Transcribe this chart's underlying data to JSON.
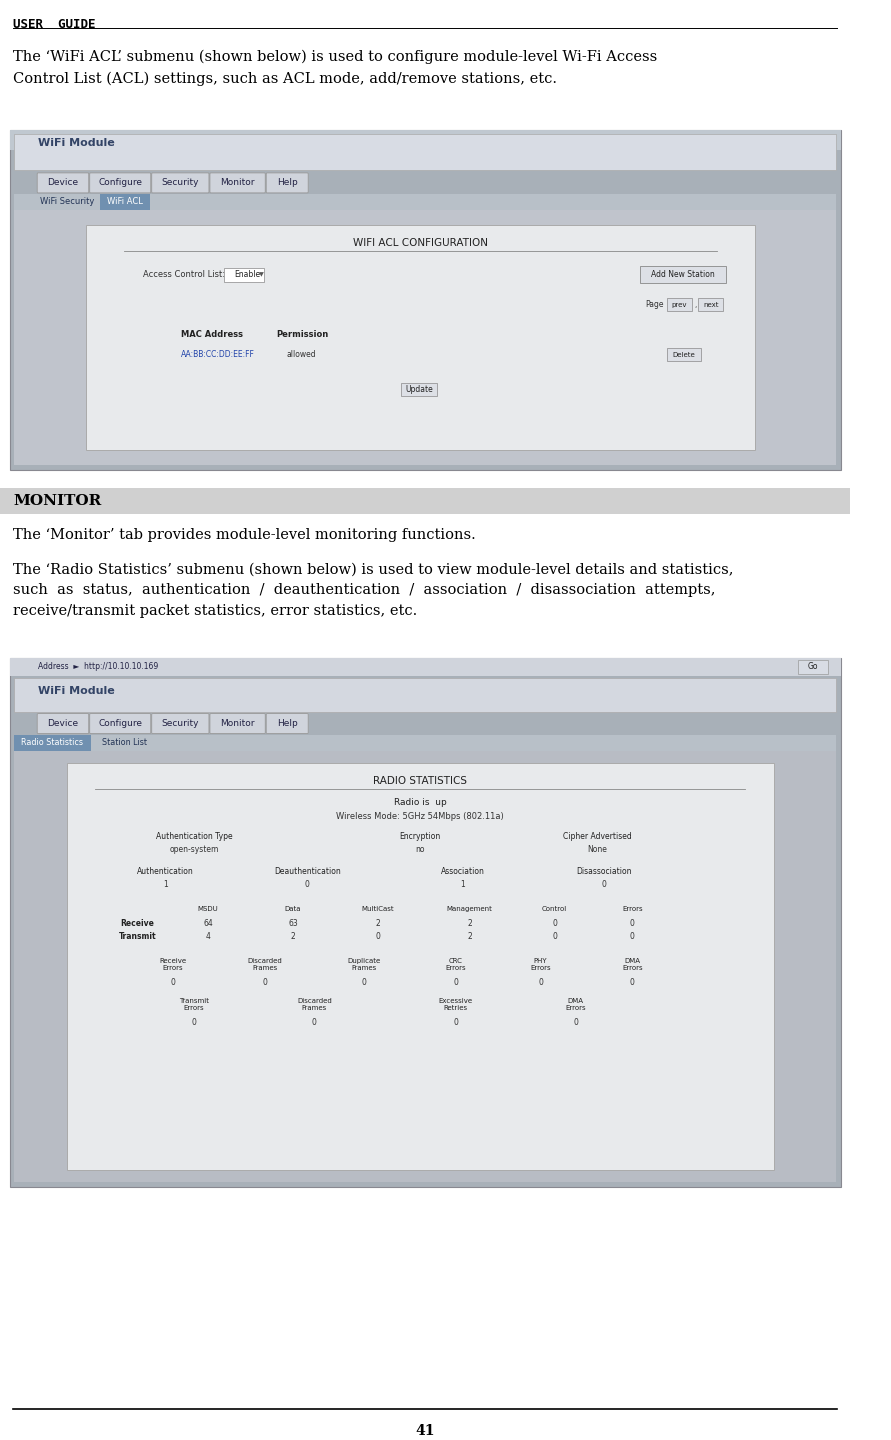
{
  "page_bg": "#ffffff",
  "header_text": "USER  GUIDE",
  "header_color": "#000000",
  "header_fontsize": 9,
  "header_font": "monospace",
  "section1_intro": "The ‘WiFi ACL’ submenu (shown below) is used to configure module-level Wi-Fi Access\nControl List (ACL) settings, such as ACL mode, add/remove stations, etc.",
  "monitor_header": "MONITOR",
  "monitor_header_bg": "#d0d0d0",
  "monitor_intro": "The ‘Monitor’ tab provides module-level monitoring functions.",
  "monitor_detail": "The ‘Radio Statistics’ submenu (shown below) is used to view module-level details and statistics,\nsuch  as  status,  authentication  /  deauthentication  /  association  /  disassociation  attempts,\nreceive/transmit packet statistics, error statistics, etc.",
  "page_number": "41",
  "screenshot1_bg": "#a8b0b8",
  "screenshot2_bg": "#a8b0b8"
}
